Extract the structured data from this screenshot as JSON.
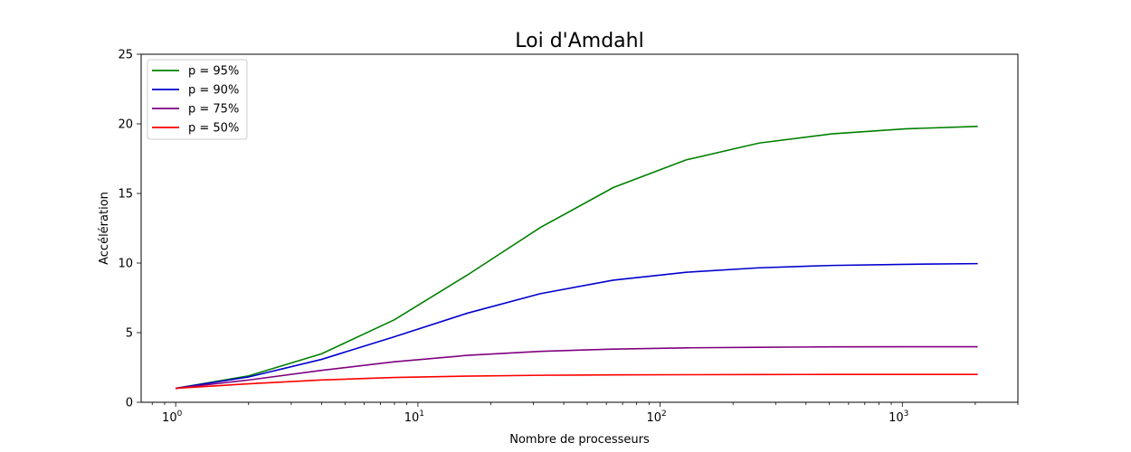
{
  "chart_data": {
    "type": "line",
    "title": "Loi d'Amdahl",
    "xlabel": "Nombre de processeurs",
    "ylabel": "Accélération",
    "xscale": "log",
    "xlim": [
      0.72,
      3000
    ],
    "ylim": [
      0,
      25
    ],
    "xticks": [
      {
        "value": 1,
        "base": "10",
        "exp": "0"
      },
      {
        "value": 10,
        "base": "10",
        "exp": "1"
      },
      {
        "value": 100,
        "base": "10",
        "exp": "2"
      },
      {
        "value": 1000,
        "base": "10",
        "exp": "3"
      }
    ],
    "yticks": [
      "0",
      "5",
      "10",
      "15",
      "20",
      "25"
    ],
    "grid": false,
    "legend_position": "upper-left",
    "x": [
      1,
      2,
      4,
      8,
      16,
      32,
      64,
      128,
      256,
      512,
      1024,
      2048
    ],
    "series": [
      {
        "name": "p = 95%",
        "color": "#008000",
        "values": [
          1.0,
          1.9,
          3.48,
          5.93,
          9.14,
          12.55,
          15.42,
          17.41,
          18.62,
          19.28,
          19.64,
          19.82
        ]
      },
      {
        "name": "p = 90%",
        "color": "#0000cd",
        "values": [
          1.0,
          1.82,
          3.08,
          4.71,
          6.4,
          7.8,
          8.77,
          9.34,
          9.66,
          9.83,
          9.91,
          9.96
        ]
      },
      {
        "name": "p = 75%",
        "color": "#800080",
        "values": [
          1.0,
          1.6,
          2.29,
          2.91,
          3.37,
          3.66,
          3.82,
          3.91,
          3.95,
          3.98,
          3.99,
          3.99
        ]
      },
      {
        "name": "p = 50%",
        "color": "#ff0000",
        "values": [
          1.0,
          1.33,
          1.6,
          1.78,
          1.88,
          1.94,
          1.97,
          1.98,
          1.99,
          2.0,
          2.0,
          2.0
        ]
      }
    ]
  }
}
